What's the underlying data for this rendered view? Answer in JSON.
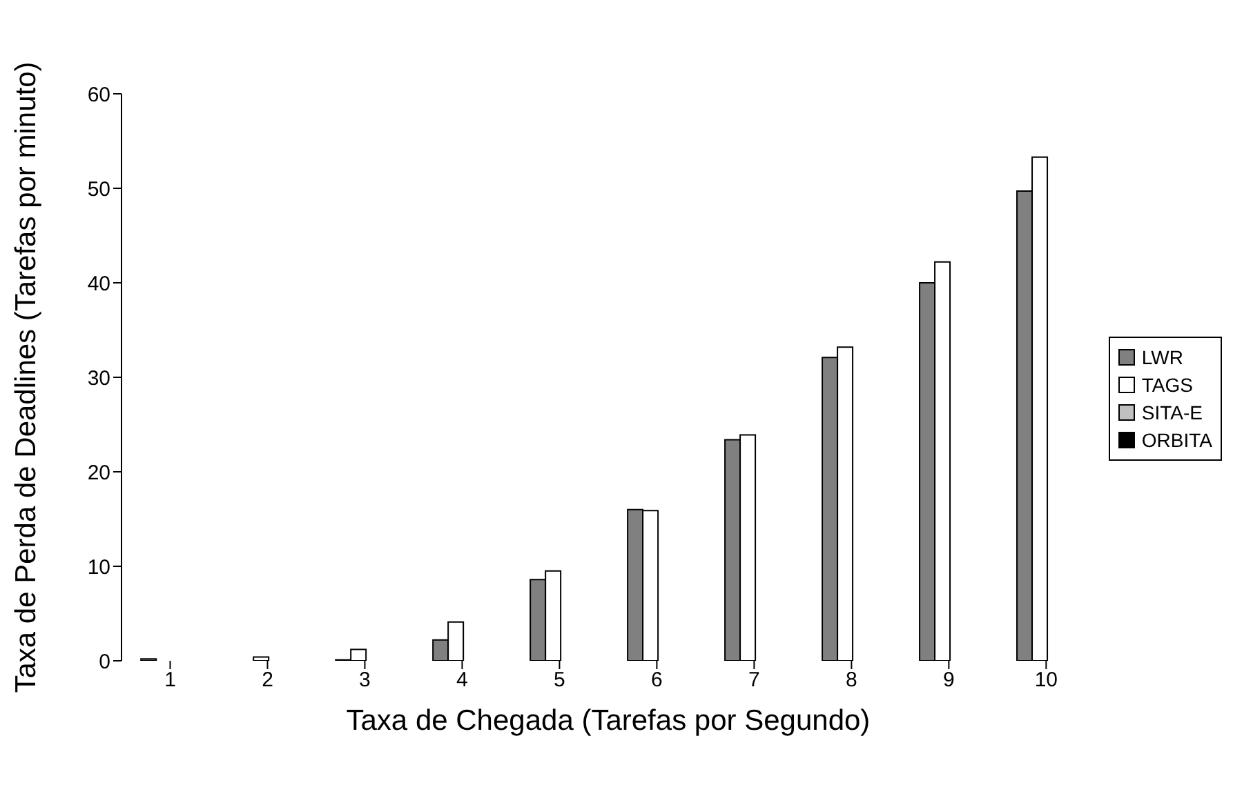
{
  "chart_data": {
    "type": "bar",
    "xlabel": "Taxa de Chegada (Tarefas por Segundo)",
    "ylabel": "Taxa de Perda de Deadlines (Tarefas por minuto)",
    "categories": [
      "1",
      "2",
      "3",
      "4",
      "5",
      "6",
      "7",
      "8",
      "9",
      "10"
    ],
    "series": [
      {
        "name": "LWR",
        "color": "#808080",
        "values": [
          0.2,
          0,
          0.1,
          2.2,
          8.6,
          16.0,
          23.4,
          32.1,
          40.0,
          49.7
        ]
      },
      {
        "name": "TAGS",
        "color": "#ffffff",
        "values": [
          0,
          0.4,
          1.2,
          4.1,
          9.5,
          15.9,
          23.9,
          33.2,
          42.2,
          53.3
        ]
      },
      {
        "name": "SITA-E",
        "color": "#c0c0c0",
        "values": [
          0,
          0,
          0,
          0,
          0,
          0,
          0,
          0,
          0,
          0
        ]
      },
      {
        "name": "ORBITA",
        "color": "#000000",
        "values": [
          0,
          0,
          0,
          0,
          0,
          0,
          0,
          0,
          0,
          0
        ]
      }
    ],
    "ylim": [
      0,
      60
    ],
    "yticks": [
      0,
      10,
      20,
      30,
      40,
      50,
      60
    ],
    "grid": false,
    "legend": "right"
  }
}
